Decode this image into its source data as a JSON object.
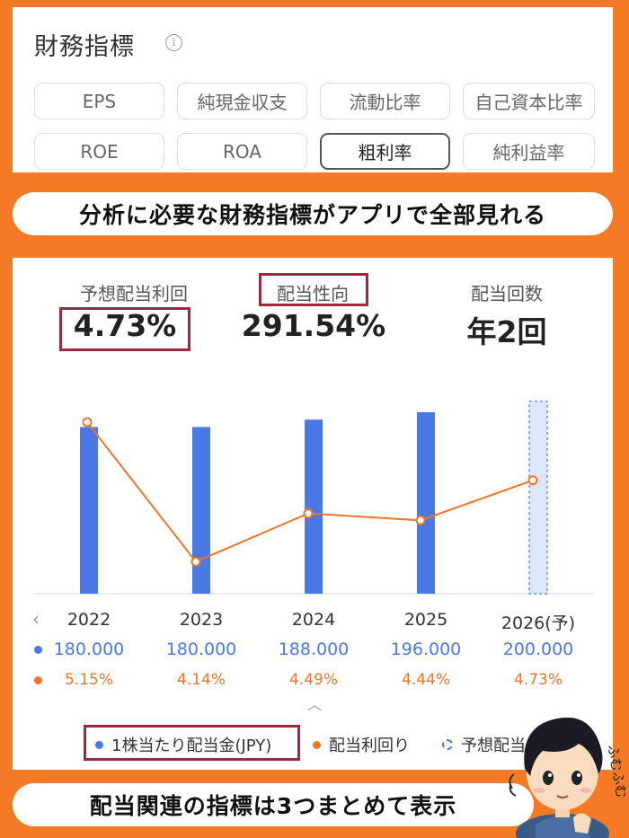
{
  "financial": {
    "title": "財務指標",
    "chips": [
      "EPS",
      "純現金収支",
      "流動比率",
      "自己資本比率",
      "ROE",
      "ROA",
      "粗利率",
      "純利益率"
    ],
    "active_chip": "粗利率"
  },
  "banner_top": "分析に必要な財務指標がアプリで全部見れる",
  "banner_bottom": "配当関連の指標は3つまとめて表示",
  "metrics": {
    "yield_label": "予想配当利回",
    "yield_value": "4.73%",
    "payout_label": "配当性向",
    "payout_value": "291.54%",
    "freq_label": "配当回数",
    "freq_value": "年2回"
  },
  "chart_data": {
    "type": "bar",
    "categories": [
      "2022",
      "2023",
      "2024",
      "2025",
      "2026(予)"
    ],
    "series": [
      {
        "name": "1株当たり配当金(JPY)",
        "type": "bar",
        "values": [
          180.0,
          180.0,
          188.0,
          196.0,
          200.0
        ],
        "labels": [
          "180.000",
          "180.000",
          "188.000",
          "196.000",
          "200.000"
        ],
        "forecast_last": true
      },
      {
        "name": "配当利回り",
        "type": "line",
        "values": [
          5.15,
          4.14,
          4.49,
          4.44,
          4.73
        ],
        "labels": [
          "5.15%",
          "4.14%",
          "4.49%",
          "4.44%",
          "4.73%"
        ]
      }
    ],
    "legend": [
      "1株当たり配当金(JPY)",
      "配当利回り",
      "予想配当"
    ],
    "legend_position": "bottom",
    "colors": {
      "bar": "#4a78e6",
      "line": "#f07426",
      "forecast_fill": "#dbe7fb"
    }
  },
  "mascot_text": "ふむふむ"
}
